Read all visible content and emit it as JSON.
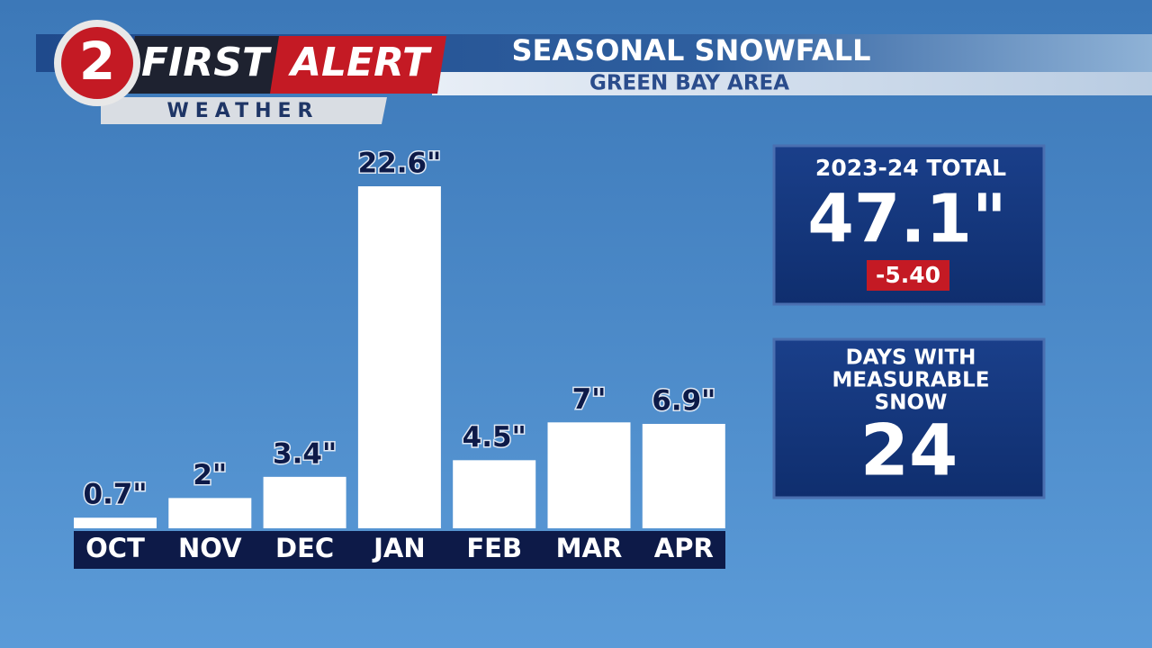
{
  "branding": {
    "channel": "2",
    "first": "FIRST",
    "alert": "ALERT",
    "weather": "WEATHER"
  },
  "chart_data": {
    "type": "bar",
    "title": "SEASONAL SNOWFALL",
    "subtitle": "GREEN BAY AREA",
    "categories": [
      "OCT",
      "NOV",
      "DEC",
      "JAN",
      "FEB",
      "MAR",
      "APR"
    ],
    "values": [
      0.7,
      2,
      3.4,
      22.6,
      4.5,
      7,
      6.9
    ],
    "value_labels": [
      "0.7\"",
      "2\"",
      "3.4\"",
      "22.6\"",
      "4.5\"",
      "7\"",
      "6.9\""
    ],
    "color": "#ffffff"
  },
  "total_panel": {
    "label": "2023-24 TOTAL",
    "value": "47.1\"",
    "departure": "-5.40"
  },
  "days_panel": {
    "label_lines": [
      "DAYS WITH",
      "MEASURABLE",
      "SNOW"
    ],
    "value": 24
  }
}
